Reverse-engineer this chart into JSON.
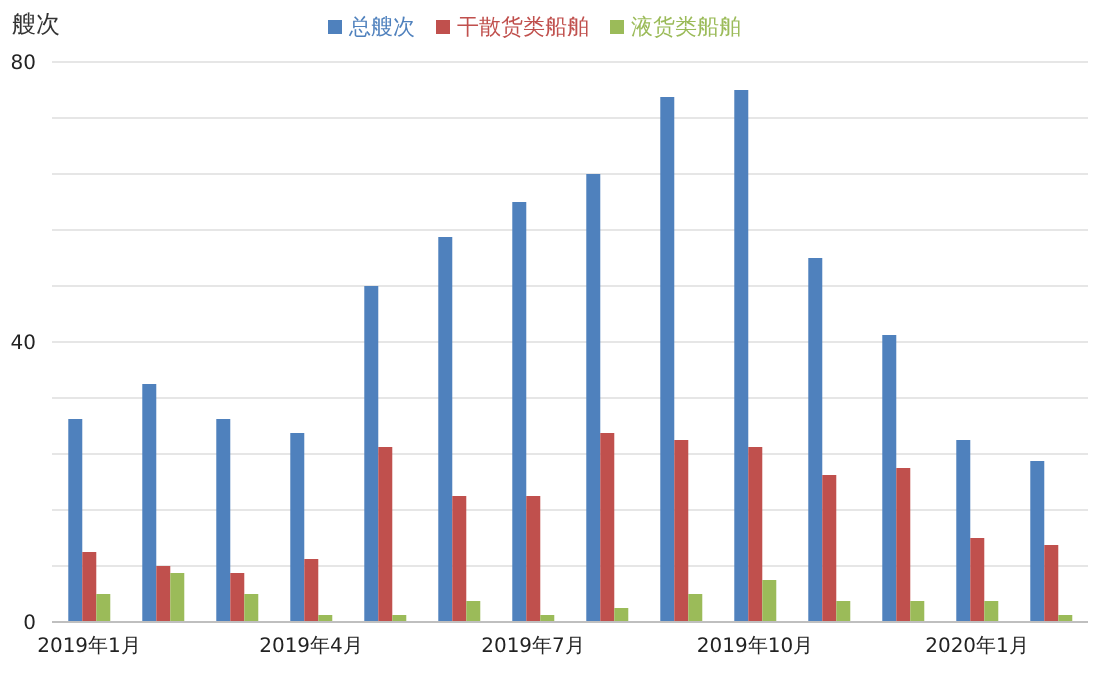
{
  "chart_data": {
    "type": "bar",
    "ylabel": "艘次",
    "categories": [
      "2019年1月",
      null,
      null,
      "2019年4月",
      null,
      null,
      "2019年7月",
      null,
      null,
      "2019年10月",
      null,
      null,
      "2020年1月",
      null
    ],
    "series": [
      {
        "name": "总艘次",
        "color": "#4f81bd",
        "values": [
          29,
          34,
          29,
          27,
          48,
          55,
          60,
          64,
          75,
          76,
          52,
          41,
          26,
          23
        ]
      },
      {
        "name": "干散货类船舶",
        "color": "#c0504d",
        "values": [
          10,
          8,
          7,
          9,
          25,
          18,
          18,
          27,
          26,
          25,
          21,
          22,
          12,
          11
        ]
      },
      {
        "name": "液货类船舶",
        "color": "#9bbb59",
        "values": [
          4,
          7,
          4,
          1,
          1,
          3,
          1,
          2,
          4,
          6,
          3,
          3,
          3,
          1
        ]
      }
    ],
    "ylim": [
      0,
      80
    ],
    "yticks": [
      0,
      {
        "value": 8,
        "label": null
      },
      {
        "value": 16,
        "label": null
      },
      {
        "value": 24,
        "label": null
      },
      {
        "value": 32,
        "label": null
      },
      40,
      {
        "value": 48,
        "label": null
      },
      {
        "value": 56,
        "label": null
      },
      {
        "value": 64,
        "label": null
      },
      {
        "value": 72,
        "label": null
      },
      80
    ],
    "grid": "y",
    "legend": "top"
  }
}
